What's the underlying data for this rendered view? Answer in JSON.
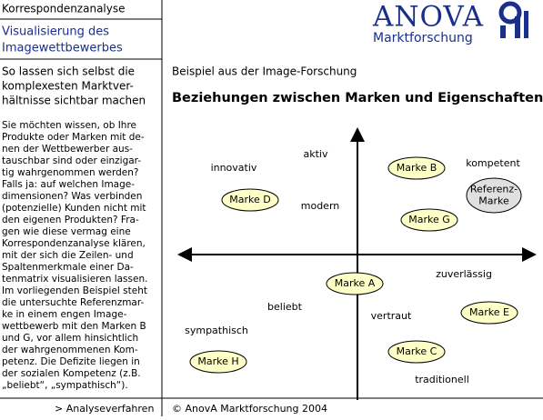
{
  "header": {
    "section": "Korrespondenzanalyse",
    "title_lines": [
      "Visualisierung des",
      "Imagewettbewerbes"
    ]
  },
  "logo": {
    "name": "ANOVA",
    "subtitle": "Marktforschung"
  },
  "sidebar": {
    "lead_lines": [
      "So lassen sich selbst die",
      "komplexesten Marktver-",
      "hältnisse sichtbar machen"
    ],
    "body_lines": [
      "Sie möchten wissen, ob Ihre",
      "Produkte oder Marken mit de-",
      "nen der Wettbewerber aus-",
      "tauschbar sind oder einzigar-",
      "tig wahrgenommen werden?",
      "Falls ja: auf welchen Image-",
      "dimensionen? Was verbinden",
      "(potenzielle) Kunden nicht mit",
      "den eigenen Produkten? Fra-",
      "gen wie diese vermag eine",
      "Korrespondenzanalyse klären,",
      "mit der sich die Zeilen- und",
      "Spaltenmerkmale einer Da-",
      "tenmatrix visualisieren lassen.",
      "Im vorliegenden Beispiel steht",
      "die untersuchte Referenzmar-",
      "ke in einem engen Image-",
      "wettbewerb mit den Marken B",
      "und G, vor allem hinsichtlich",
      "der wahrgenommenen Kom-",
      "petenz. Die Defizite liegen in",
      "der sozialen Kompetenz (z.B.",
      "„beliebt“, „sympathisch“)."
    ]
  },
  "diagram": {
    "subtitle": "Beispiel aus der Image-Forschung",
    "title": "Beziehungen zwischen Marken und Eigenschaften",
    "brands": [
      {
        "lines": [
          "Marke B"
        ]
      },
      {
        "lines": [
          "Marke D"
        ]
      },
      {
        "lines": [
          "Referenz-",
          "Marke"
        ]
      },
      {
        "lines": [
          "Marke G"
        ]
      },
      {
        "lines": [
          "Marke A"
        ]
      },
      {
        "lines": [
          "Marke E"
        ]
      },
      {
        "lines": [
          "Marke C"
        ]
      },
      {
        "lines": [
          "Marke H"
        ]
      }
    ],
    "attributes": [
      "aktiv",
      "innovativ",
      "kompetent",
      "modern",
      "zuverlässig",
      "beliebt",
      "vertraut",
      "sympathisch",
      "traditionell"
    ]
  },
  "footer": {
    "nav": "> Analyseverfahren",
    "copyright": "© AnovA Marktforschung 2004"
  }
}
